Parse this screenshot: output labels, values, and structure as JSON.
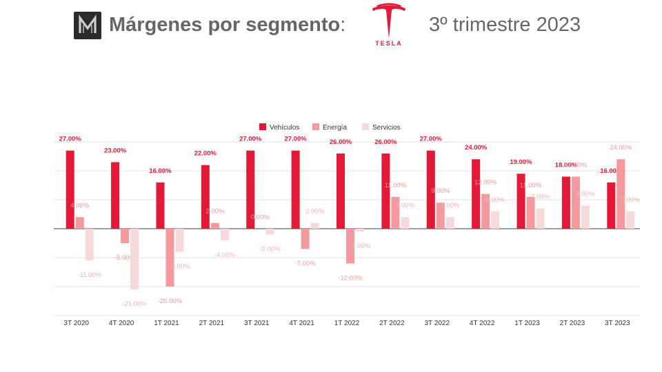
{
  "header": {
    "logo_icon": "stylized-m-logo-icon",
    "title": "Márgenes por segmento",
    "separator": ":",
    "brand_icon": "tesla-t-logo-icon",
    "brand_word": "TESLA",
    "period": "3º trimestre 2023"
  },
  "colors": {
    "vehiculos": "#e31937",
    "energia": "#f4999d",
    "servicios": "#f6dadb",
    "text": "#666666",
    "grid": "#e0e0e0"
  },
  "chart_data": {
    "type": "bar",
    "categories": [
      "3T 2020",
      "4T 2020",
      "1T 2021",
      "2T 2021",
      "3T 2021",
      "4T 2021",
      "1T 2022",
      "2T 2022",
      "3T 2022",
      "4T 2022",
      "1T 2023",
      "2T 2023",
      "3T 2023"
    ],
    "series": [
      {
        "name": "Vehículos",
        "values": [
          27,
          23,
          16,
          22,
          27,
          27,
          26,
          26,
          27,
          24,
          19,
          18,
          16
        ],
        "labels": [
          "27.00%",
          "23.00%",
          "16.00%",
          "22.00%",
          "27.00%",
          "27.00%",
          "26.00%",
          "26.00%",
          "27.00%",
          "24.00%",
          "19.00%",
          "18.00%",
          "16.00%"
        ]
      },
      {
        "name": "Energía",
        "values": [
          4,
          -5,
          -20,
          2,
          0,
          -7,
          -12,
          11,
          9,
          12,
          11,
          18,
          24
        ],
        "labels": [
          "4.00%",
          "-5.00%",
          "-20.00%",
          "2.00%",
          "0.00%",
          "-7.00%",
          "-12.00%",
          "11.00%",
          "9.00%",
          "12.00%",
          "11.00%",
          "18.00%",
          "24.00%"
        ]
      },
      {
        "name": "Servicios",
        "values": [
          -11,
          -21,
          -8,
          -4,
          -2,
          2,
          -1,
          4,
          4,
          6,
          7,
          8,
          6
        ],
        "labels": [
          "-11.00%",
          "-21.00%",
          "-8.00%",
          "-4.00%",
          "-2.00%",
          "2.00%",
          "-1.00%",
          "4.00%",
          "4.00%",
          "6.00%",
          "7.00%",
          "8.00%",
          "6.00%"
        ]
      }
    ],
    "ylim": [
      -30,
      30
    ],
    "grid": true,
    "legend_position": "top-center",
    "data_labels": true
  }
}
